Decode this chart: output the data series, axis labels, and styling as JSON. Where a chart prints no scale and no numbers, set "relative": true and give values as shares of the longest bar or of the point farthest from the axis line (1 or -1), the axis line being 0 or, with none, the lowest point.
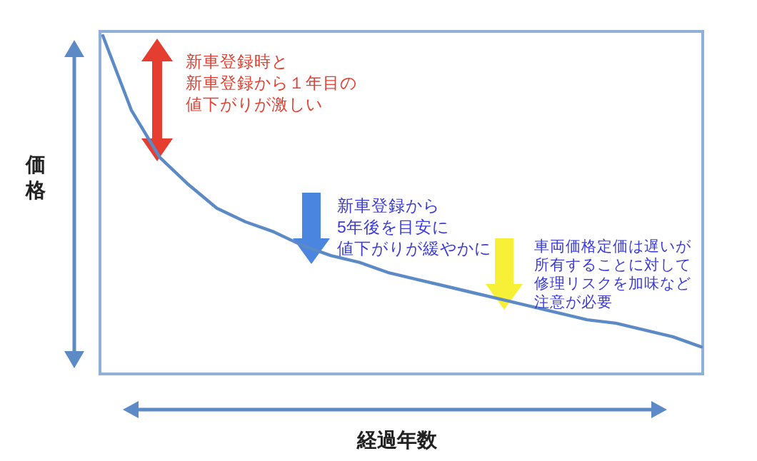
{
  "chart_data": {
    "type": "line",
    "relative": true,
    "xlabel": "経過年数",
    "ylabel": "価格",
    "categories": [
      null,
      null,
      null,
      null,
      null,
      null,
      null,
      null,
      null,
      null,
      null,
      null,
      null,
      null,
      null,
      null,
      null,
      null,
      null,
      null,
      null,
      null
    ],
    "series": [
      {
        "color": "#5b8ac6",
        "values": [
          1.0,
          0.78,
          0.64,
          0.56,
          0.49,
          0.45,
          0.42,
          0.38,
          0.35,
          0.33,
          0.3,
          0.28,
          0.26,
          0.24,
          0.22,
          0.2,
          0.18,
          0.16,
          0.15,
          0.13,
          0.11,
          0.08
        ]
      }
    ],
    "annotations": [
      "新車登録時と",
      "新車登録から１年目の",
      "値下がりが激しい",
      "新車登録から",
      "5年後を目安に",
      "値下がりが緩やかに",
      "車両価格定価は遅いが",
      "所有することに対して",
      "修理リスクを加味など",
      "注意が必要"
    ],
    "marker": "none",
    "line_style": "solid",
    "grid": false
  }
}
